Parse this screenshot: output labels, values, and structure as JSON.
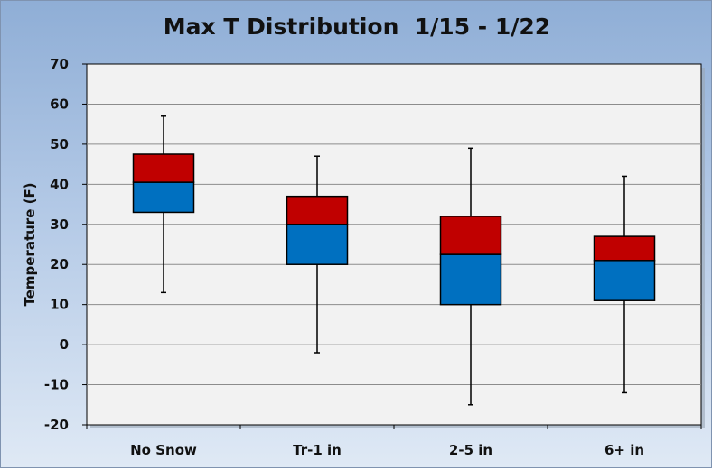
{
  "chart_data": {
    "type": "box",
    "title": "Max T Distribution  1/15 - 1/22",
    "xlabel": "",
    "ylabel": "Temperature (F)",
    "ylim": [
      -20,
      70
    ],
    "yticks": [
      "70",
      "60",
      "50",
      "40",
      "30",
      "20",
      "10",
      "0",
      "-10",
      "-20"
    ],
    "categories": [
      "No Snow",
      "Tr-1 in",
      "2-5 in",
      "6+ in"
    ],
    "series": [
      {
        "min": 13,
        "q1": 33,
        "median": 40.5,
        "q3": 47.5,
        "max": 57
      },
      {
        "min": -2,
        "q1": 20,
        "median": 30,
        "q3": 37,
        "max": 47
      },
      {
        "min": -15,
        "q1": 10,
        "median": 22.5,
        "q3": 32,
        "max": 49
      },
      {
        "min": -12,
        "q1": 11,
        "median": 21,
        "q3": 27,
        "max": 42
      }
    ],
    "grid": true,
    "colors": {
      "lower_box": "#0070c0",
      "upper_box": "#c00000",
      "plot_bg": "#f2f2f2"
    }
  }
}
